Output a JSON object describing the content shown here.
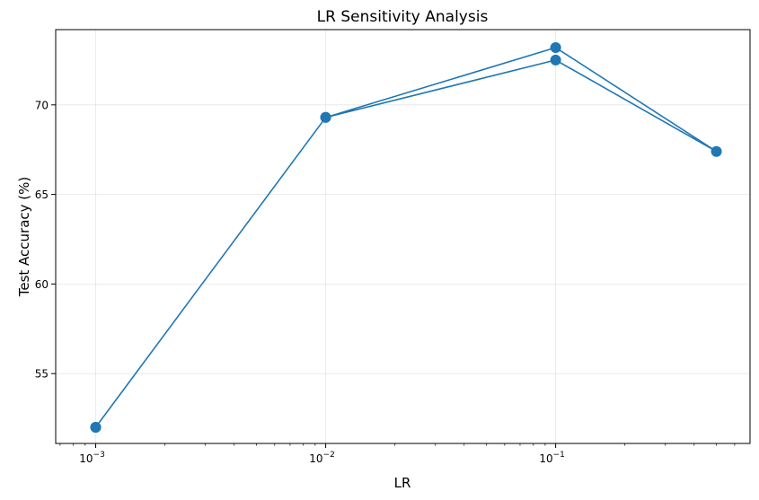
{
  "chart_data": {
    "type": "line",
    "title": "LR Sensitivity Analysis",
    "xlabel": "LR",
    "ylabel": "Test Accuracy (%)",
    "xscale": "log",
    "xlim": [
      0.00067,
      0.7
    ],
    "ylim": [
      51.1,
      74.2
    ],
    "grid": true,
    "color": "#1f77b4",
    "x_ticks": [
      {
        "value": 0.001,
        "mantissa": "10",
        "exponent": "−3"
      },
      {
        "value": 0.01,
        "mantissa": "10",
        "exponent": "−2"
      },
      {
        "value": 0.1,
        "mantissa": "10",
        "exponent": "−1"
      }
    ],
    "y_ticks": [
      {
        "value": 55,
        "label": "55"
      },
      {
        "value": 60,
        "label": "60"
      },
      {
        "value": 65,
        "label": "65"
      },
      {
        "value": 70,
        "label": "70"
      }
    ],
    "series": [
      {
        "x": [
          0.001,
          0.01,
          0.1,
          0.5,
          0.1,
          0.01,
          0.001
        ],
        "y": [
          52.0,
          69.3,
          73.2,
          67.4,
          72.5,
          69.3,
          52.0
        ]
      }
    ]
  }
}
